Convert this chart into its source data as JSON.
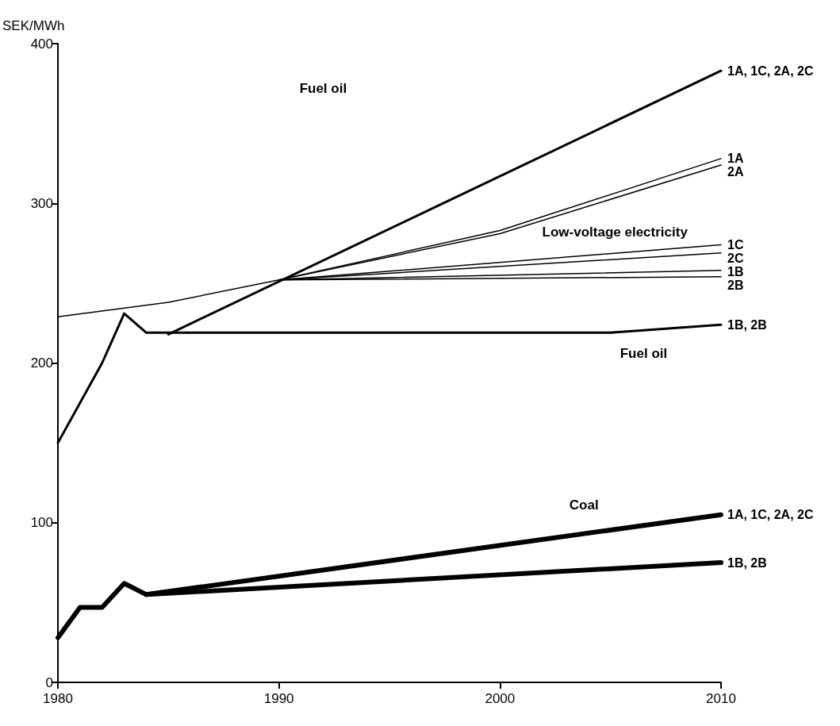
{
  "chart_data": {
    "type": "line",
    "ylabel": "SEK/MWh",
    "xlim": [
      1980,
      2010
    ],
    "xticks": [
      1980,
      1990,
      2000,
      2010
    ],
    "ylim": [
      0,
      400
    ],
    "yticks": [
      0,
      100,
      200,
      300,
      400
    ],
    "grid": false,
    "marker": "none",
    "line_style": "solid",
    "legend": "right",
    "annotations": [
      "Fuel oil",
      "Low-voltage electricity",
      "Fuel oil",
      "Coal"
    ],
    "series": [
      {
        "name": "1A, 1C, 2A, 2C",
        "color": "#000000",
        "x": [
          1985,
          2010
        ],
        "values": [
          218,
          383
        ]
      },
      {
        "name": "1B, 2B",
        "color": "#000000",
        "x": [
          1980,
          1982,
          1983,
          1984,
          2005,
          2010
        ],
        "values": [
          150,
          200,
          231,
          219,
          219,
          224
        ]
      },
      {
        "name": "1A",
        "color": "#000000",
        "x": [
          1980,
          1985,
          1990,
          2000,
          2010
        ],
        "values": [
          229,
          238,
          252,
          283,
          328
        ]
      },
      {
        "name": "2A",
        "color": "#000000",
        "x": [
          1990,
          2000,
          2010
        ],
        "values": [
          252,
          281,
          324
        ]
      },
      {
        "name": "1C",
        "color": "#000000",
        "x": [
          1990,
          2010
        ],
        "values": [
          252,
          274
        ]
      },
      {
        "name": "2C",
        "color": "#000000",
        "x": [
          1990,
          2010
        ],
        "values": [
          252,
          269
        ]
      },
      {
        "name": "1B",
        "color": "#000000",
        "x": [
          1990,
          2010
        ],
        "values": [
          252,
          258
        ]
      },
      {
        "name": "2B",
        "color": "#000000",
        "x": [
          1990,
          2010
        ],
        "values": [
          252,
          254
        ]
      },
      {
        "name": "1A, 1C, 2A, 2C",
        "color": "#000000",
        "x": [
          1980,
          1981,
          1982,
          1983,
          1984,
          2010
        ],
        "values": [
          28,
          47,
          47,
          62,
          55,
          105
        ]
      },
      {
        "name": "1B, 2B",
        "color": "#000000",
        "x": [
          1984,
          2010
        ],
        "values": [
          55,
          75
        ]
      }
    ]
  }
}
